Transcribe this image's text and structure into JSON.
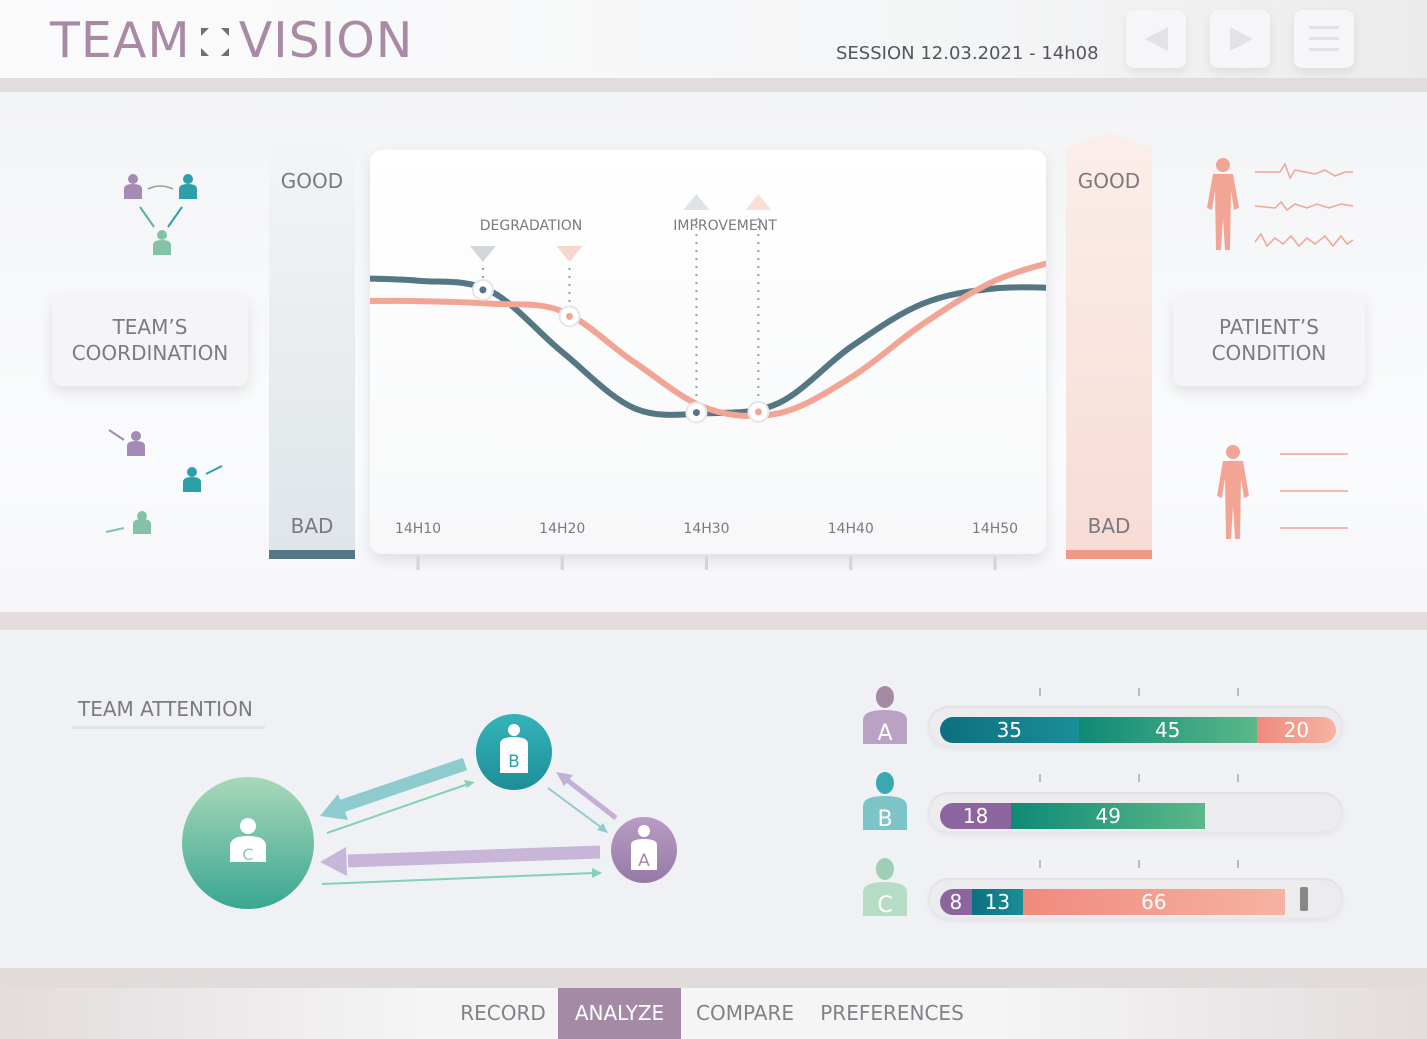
{
  "header": {
    "logo_left": "TEAM",
    "logo_right": "VISION",
    "session": "SESSION 12.03.2021 - 14h08",
    "buttons": [
      "prev",
      "next",
      "menu"
    ]
  },
  "left_panel": {
    "card_line1": "TEAM’S",
    "card_line2": "COORDINATION"
  },
  "right_panel": {
    "card_line1": "PATIENT’S",
    "card_line2": "CONDITION"
  },
  "gauges": {
    "good": "GOOD",
    "bad": "BAD"
  },
  "colors": {
    "team": "#557683",
    "patient": "#f2a495",
    "mauve": "#a58aa5",
    "teal": "#2d9fa8",
    "green": "#7fc4a6"
  },
  "chart_data": {
    "type": "line",
    "x_ticks": [
      "14H10",
      "14H20",
      "14H30",
      "14H40",
      "14H50"
    ],
    "markers": {
      "degradation": "DEGRADATION",
      "improvement": "IMPROVEMENT"
    },
    "series": [
      {
        "name": "team",
        "x": [
          5,
          10,
          15,
          20,
          25,
          30,
          35,
          40,
          45,
          50,
          55
        ],
        "y": [
          0.87,
          0.86,
          0.82,
          0.58,
          0.36,
          0.34,
          0.38,
          0.6,
          0.77,
          0.83,
          0.83
        ]
      },
      {
        "name": "patient",
        "x": [
          5,
          10,
          15,
          20,
          25,
          30,
          35,
          40,
          45,
          50,
          55
        ],
        "y": [
          0.78,
          0.78,
          0.77,
          0.74,
          0.54,
          0.36,
          0.34,
          0.48,
          0.69,
          0.86,
          0.95
        ]
      }
    ],
    "ylim": [
      0,
      1
    ]
  },
  "attention": {
    "title": "TEAM ATTENTION",
    "nodes": {
      "a": "A",
      "b": "B",
      "c": "C"
    }
  },
  "members": [
    {
      "label": "A",
      "segments": [
        {
          "value": 35,
          "color": "teal"
        },
        {
          "value": 45,
          "color": "green"
        },
        {
          "value": 20,
          "color": "salmon"
        }
      ]
    },
    {
      "label": "B",
      "segments": [
        {
          "value": 18,
          "color": "purple"
        },
        {
          "value": 49,
          "color": "green"
        }
      ]
    },
    {
      "label": "C",
      "segments": [
        {
          "value": 8,
          "color": "purple"
        },
        {
          "value": 13,
          "color": "teal"
        },
        {
          "value": 66,
          "color": "salmon"
        }
      ]
    }
  ],
  "nav": {
    "record": "RECORD",
    "analyze": "ANALYZE",
    "compare": "COMPARE",
    "preferences": "PREFERENCES"
  }
}
